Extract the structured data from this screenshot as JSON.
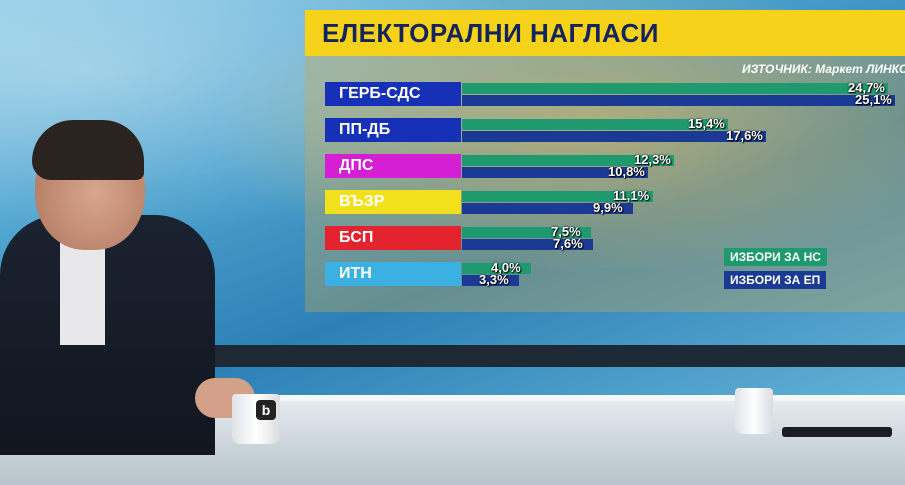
{
  "header": {
    "title": "ЕЛЕКТОРАЛНИ НАГЛАСИ",
    "source": "ИЗТОЧНИК: Маркет ЛИНКС"
  },
  "legend": {
    "ns": "ИЗБОРИ ЗА НС",
    "ep": "ИЗБОРИ ЗА ЕП"
  },
  "colors": {
    "title_bg": "#f7d21b",
    "title_text": "#14245c",
    "bar_ns": "#1e9a6e",
    "bar_ep": "#1b3a94"
  },
  "mug_logo": "b",
  "chart_data": {
    "type": "bar",
    "title": "ЕЛЕКТОРАЛНИ НАГЛАСИ",
    "categories": [
      "ГЕРБ-СДС",
      "ПП-ДБ",
      "ДПС",
      "ВЪЗР",
      "БСП",
      "ИТН"
    ],
    "category_colors": [
      "#1631b8",
      "#1631b8",
      "#d41fd4",
      "#f2e01c",
      "#e3232e",
      "#3bb0e3"
    ],
    "series": [
      {
        "name": "ИЗБОРИ ЗА НС",
        "values": [
          24.7,
          15.4,
          12.3,
          11.1,
          7.5,
          4.0
        ],
        "labels": [
          "24,7%",
          "15,4%",
          "12,3%",
          "11,1%",
          "7,5%",
          "4,0%"
        ]
      },
      {
        "name": "ИЗБОРИ ЗА ЕП",
        "values": [
          25.1,
          17.6,
          10.8,
          9.9,
          7.6,
          3.3
        ],
        "labels": [
          "25,1%",
          "17,6%",
          "10,8%",
          "9,9%",
          "7,6%",
          "3,3%"
        ]
      }
    ],
    "xlim": [
      0,
      25.1
    ],
    "legend_position": "bottom-right"
  }
}
